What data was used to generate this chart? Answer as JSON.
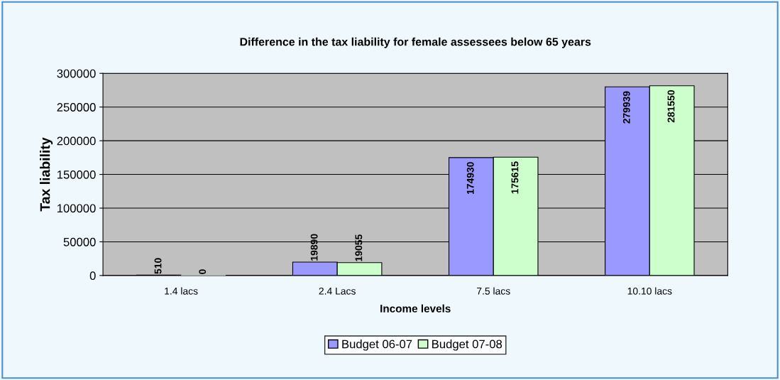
{
  "chart_data": {
    "type": "bar",
    "title": "Difference in the tax liability for female assessees below 65 years",
    "xlabel": "Income levels",
    "ylabel": "Tax liability",
    "categories": [
      "1.4 lacs",
      "2.4 Lacs",
      "7.5 lacs",
      "10.10 lacs"
    ],
    "series": [
      {
        "name": "Budget 06-07",
        "color": "#9999ff",
        "values": [
          510,
          19890,
          174930,
          279939
        ]
      },
      {
        "name": "Budget 07-08",
        "color": "#ccffcc",
        "values": [
          0,
          19055,
          175615,
          281550
        ]
      }
    ],
    "ylim": [
      0,
      300000
    ],
    "yticks": [
      0,
      50000,
      100000,
      150000,
      200000,
      250000,
      300000
    ],
    "grid": "y",
    "legend": "bottom",
    "data_labels": true
  }
}
